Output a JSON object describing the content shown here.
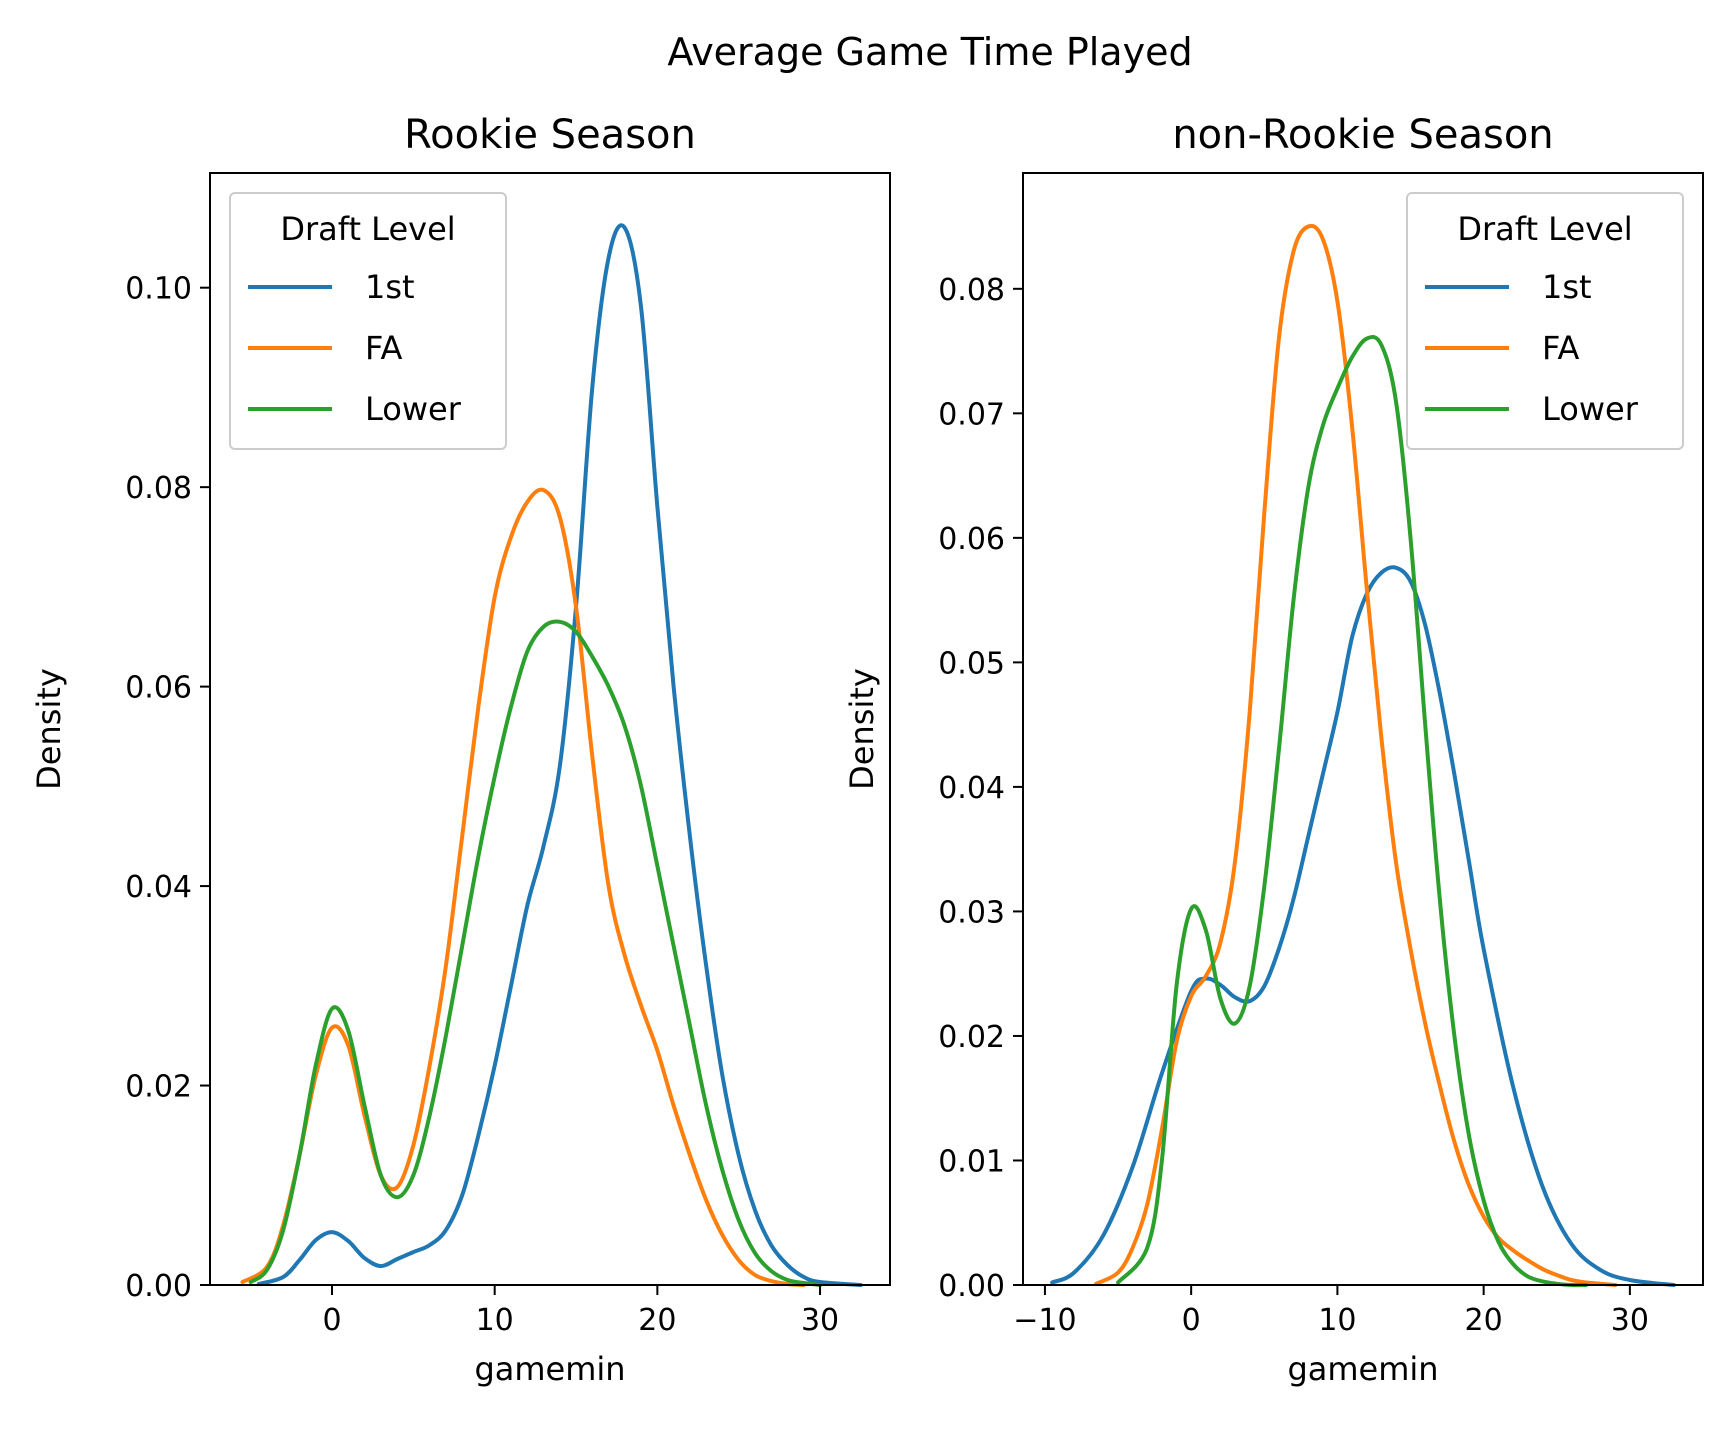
{
  "figure": {
    "suptitle": "Average Game Time Played"
  },
  "colors": {
    "1st": "#1f77b4",
    "FA": "#ff7f0e",
    "Lower": "#2ca02c"
  },
  "chart_data": [
    {
      "type": "line",
      "title": "Rookie Season",
      "xlabel": "gamemin",
      "ylabel": "Density",
      "xlim": [
        -7.5,
        34.3
      ],
      "ylim": [
        0,
        0.1115
      ],
      "xticks": [
        0,
        10,
        20,
        30
      ],
      "yticks": [
        0.0,
        0.02,
        0.04,
        0.06,
        0.08,
        0.1
      ],
      "ytick_labels": [
        "0.00",
        "0.02",
        "0.04",
        "0.06",
        "0.08",
        "0.10"
      ],
      "legend": {
        "title": "Draft Level",
        "placement": "upper-left"
      },
      "series": [
        {
          "name": "1st",
          "color": "#1f77b4",
          "x": [
            -4.5,
            -3,
            -2,
            -1,
            0,
            1,
            2,
            3,
            4,
            5,
            6,
            7,
            8,
            9,
            10,
            11,
            12,
            13,
            14,
            15,
            16,
            17,
            18,
            19,
            20,
            21,
            22,
            23,
            24,
            25,
            26,
            27,
            28,
            29,
            30,
            32.5
          ],
          "y": [
            0.0001,
            0.0008,
            0.0025,
            0.0045,
            0.0053,
            0.0044,
            0.0027,
            0.0019,
            0.0026,
            0.0033,
            0.004,
            0.0055,
            0.009,
            0.015,
            0.022,
            0.03,
            0.038,
            0.044,
            0.052,
            0.068,
            0.09,
            0.103,
            0.106,
            0.098,
            0.078,
            0.06,
            0.045,
            0.032,
            0.021,
            0.013,
            0.0075,
            0.004,
            0.002,
            0.0008,
            0.0003,
            0.0
          ]
        },
        {
          "name": "FA",
          "color": "#ff7f0e",
          "x": [
            -5.5,
            -4,
            -3,
            -2,
            -1,
            0,
            1,
            2,
            3,
            4,
            5,
            6,
            7,
            8,
            9,
            10,
            11,
            12,
            13,
            14,
            15,
            16,
            17,
            18,
            19,
            20,
            21,
            22,
            23,
            24,
            25,
            26,
            27,
            28,
            29
          ],
          "y": [
            0.0003,
            0.0018,
            0.006,
            0.013,
            0.021,
            0.0258,
            0.024,
            0.017,
            0.011,
            0.0098,
            0.014,
            0.022,
            0.032,
            0.045,
            0.058,
            0.069,
            0.075,
            0.0785,
            0.0797,
            0.077,
            0.068,
            0.053,
            0.04,
            0.033,
            0.028,
            0.0235,
            0.018,
            0.013,
            0.0085,
            0.005,
            0.0025,
            0.001,
            0.0004,
            0.0001,
            0.0
          ]
        },
        {
          "name": "Lower",
          "color": "#2ca02c",
          "x": [
            -5,
            -4,
            -3,
            -2,
            -1,
            0,
            1,
            2,
            3,
            4,
            5,
            6,
            7,
            8,
            9,
            10,
            11,
            12,
            13,
            14,
            15,
            16,
            17,
            18,
            19,
            20,
            21,
            22,
            23,
            24,
            25,
            26,
            27,
            28,
            29,
            30
          ],
          "y": [
            0.0003,
            0.0015,
            0.0055,
            0.013,
            0.022,
            0.0277,
            0.0255,
            0.018,
            0.011,
            0.0088,
            0.011,
            0.017,
            0.025,
            0.034,
            0.043,
            0.051,
            0.058,
            0.0635,
            0.066,
            0.0665,
            0.0655,
            0.063,
            0.06,
            0.056,
            0.05,
            0.042,
            0.034,
            0.026,
            0.018,
            0.0115,
            0.0065,
            0.0032,
            0.0014,
            0.0005,
            0.0002,
            0.0
          ]
        }
      ]
    },
    {
      "type": "line",
      "title": "non-Rookie Season",
      "xlabel": "gamemin",
      "ylabel": "Density",
      "xlim": [
        -11.5,
        35.0
      ],
      "ylim": [
        0,
        0.0893
      ],
      "xticks": [
        -10,
        0,
        10,
        20,
        30
      ],
      "xtick_labels": [
        "−10",
        "0",
        "10",
        "20",
        "30"
      ],
      "yticks": [
        0.0,
        0.01,
        0.02,
        0.03,
        0.04,
        0.05,
        0.06,
        0.07,
        0.08
      ],
      "ytick_labels": [
        "0.00",
        "0.01",
        "0.02",
        "0.03",
        "0.04",
        "0.05",
        "0.06",
        "0.07",
        "0.08"
      ],
      "legend": {
        "title": "Draft Level",
        "placement": "upper-right"
      },
      "series": [
        {
          "name": "1st",
          "color": "#1f77b4",
          "x": [
            -9.5,
            -8,
            -6,
            -4,
            -2,
            0,
            1,
            2,
            3,
            4,
            5,
            6,
            7,
            8,
            9,
            10,
            11,
            12,
            13,
            14,
            15,
            16,
            17,
            18,
            19,
            20,
            22,
            24,
            26,
            28,
            30,
            33
          ],
          "y": [
            0.0002,
            0.001,
            0.004,
            0.0095,
            0.017,
            0.0236,
            0.0246,
            0.0241,
            0.0231,
            0.0228,
            0.024,
            0.027,
            0.031,
            0.036,
            0.041,
            0.046,
            0.052,
            0.0555,
            0.0572,
            0.0576,
            0.0565,
            0.053,
            0.0475,
            0.041,
            0.034,
            0.027,
            0.016,
            0.008,
            0.0033,
            0.0012,
            0.0004,
            0.0
          ]
        },
        {
          "name": "FA",
          "color": "#ff7f0e",
          "x": [
            -6.5,
            -5,
            -4,
            -3,
            -2,
            -1,
            0,
            1,
            2,
            3,
            4,
            5,
            6,
            7,
            8,
            9,
            10,
            11,
            12,
            13,
            14,
            15,
            16,
            17,
            18,
            19,
            20,
            21,
            22,
            23,
            24,
            25,
            26,
            27,
            28,
            29
          ],
          "y": [
            0.0001,
            0.001,
            0.003,
            0.0065,
            0.0125,
            0.0195,
            0.0232,
            0.0248,
            0.0275,
            0.034,
            0.046,
            0.062,
            0.076,
            0.083,
            0.085,
            0.084,
            0.079,
            0.069,
            0.056,
            0.044,
            0.034,
            0.027,
            0.021,
            0.016,
            0.0115,
            0.008,
            0.0055,
            0.0038,
            0.0028,
            0.002,
            0.0013,
            0.0008,
            0.0004,
            0.0002,
            0.0001,
            0.0
          ]
        },
        {
          "name": "Lower",
          "color": "#2ca02c",
          "x": [
            -5,
            -3,
            -2,
            -1,
            0,
            1,
            2,
            3,
            4,
            5,
            6,
            7,
            8,
            9,
            10,
            11,
            12,
            13,
            14,
            15,
            16,
            17,
            18,
            19,
            20,
            21,
            22,
            23,
            24,
            25,
            26,
            27
          ],
          "y": [
            0.0002,
            0.003,
            0.01,
            0.024,
            0.0302,
            0.0285,
            0.023,
            0.021,
            0.024,
            0.032,
            0.043,
            0.055,
            0.064,
            0.069,
            0.072,
            0.0745,
            0.076,
            0.0755,
            0.071,
            0.06,
            0.045,
            0.031,
            0.02,
            0.012,
            0.0068,
            0.0035,
            0.0017,
            0.0007,
            0.0003,
            0.0001,
            0.0,
            0.0
          ]
        }
      ]
    }
  ]
}
